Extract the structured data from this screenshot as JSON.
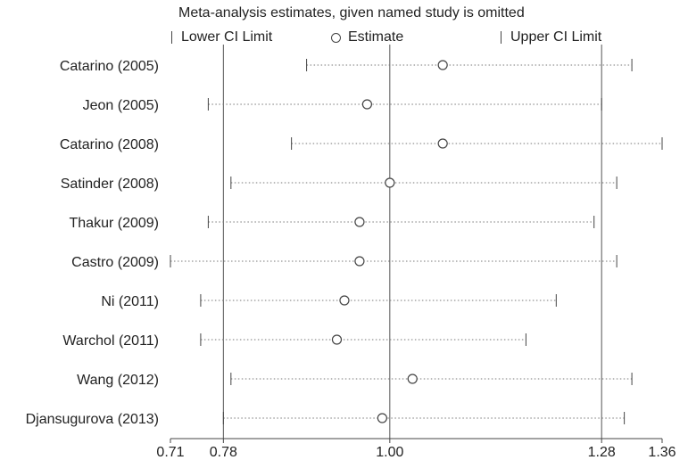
{
  "chart_data": {
    "type": "scatter",
    "title": "Meta-analysis estimates, given named study is omitted",
    "legend": {
      "lower": "Lower CI Limit",
      "estimate": "Estimate",
      "upper": "Upper CI Limit",
      "placement": "top"
    },
    "xlim": [
      0.71,
      1.36
    ],
    "xticks": [
      {
        "value": 0.71,
        "label": "0.71"
      },
      {
        "value": 0.78,
        "label": "0.78"
      },
      {
        "value": 1.0,
        "label": "1.00"
      },
      {
        "value": 1.28,
        "label": "1.28"
      },
      {
        "value": 1.36,
        "label": "1.36"
      }
    ],
    "reference_lines": [
      0.78,
      1.0,
      1.28
    ],
    "studies": [
      {
        "name": "Catarino (2005)",
        "lower": 0.89,
        "estimate": 1.07,
        "upper": 1.32
      },
      {
        "name": "Jeon (2005)",
        "lower": 0.76,
        "estimate": 0.97,
        "upper": 1.28
      },
      {
        "name": "Catarino (2008)",
        "lower": 0.87,
        "estimate": 1.07,
        "upper": 1.36
      },
      {
        "name": "Satinder (2008)",
        "lower": 0.79,
        "estimate": 1.0,
        "upper": 1.3
      },
      {
        "name": "Thakur (2009)",
        "lower": 0.76,
        "estimate": 0.96,
        "upper": 1.27
      },
      {
        "name": "Castro (2009)",
        "lower": 0.71,
        "estimate": 0.96,
        "upper": 1.3
      },
      {
        "name": "Ni (2011)",
        "lower": 0.75,
        "estimate": 0.94,
        "upper": 1.22
      },
      {
        "name": "Warchol (2011)",
        "lower": 0.75,
        "estimate": 0.93,
        "upper": 1.18
      },
      {
        "name": "Wang (2012)",
        "lower": 0.79,
        "estimate": 1.03,
        "upper": 1.32
      },
      {
        "name": "Djansugurova (2013)",
        "lower": 0.78,
        "estimate": 0.99,
        "upper": 1.31
      }
    ]
  }
}
